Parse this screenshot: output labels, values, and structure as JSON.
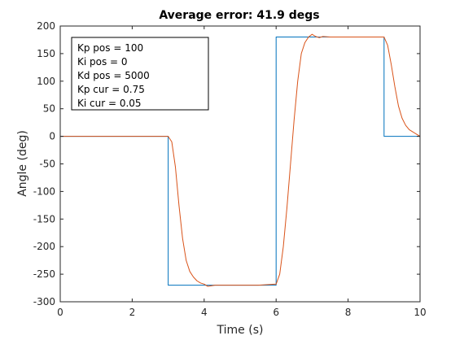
{
  "chart_data": {
    "type": "line",
    "title": "Average error:  41.9 degs",
    "xlabel": "Time (s)",
    "ylabel": "Angle (deg)",
    "xlim": [
      0,
      10
    ],
    "ylim": [
      -300,
      200
    ],
    "xticks": [
      0,
      2,
      4,
      6,
      8,
      10
    ],
    "yticks": [
      -300,
      -250,
      -200,
      -150,
      -100,
      -50,
      0,
      50,
      100,
      150,
      200
    ],
    "grid": false,
    "annotation_lines": [
      "Kp pos = 100",
      "Ki pos = 0",
      "Kd pos = 5000",
      "Kp cur = 0.75",
      "Ki cur = 0.05"
    ],
    "annotation_placement": "top-left",
    "series": [
      {
        "color": "#0072BD",
        "x": [
          0,
          3,
          3,
          6,
          6,
          9,
          9,
          10
        ],
        "y": [
          0,
          0,
          -270,
          -270,
          180,
          180,
          0,
          0
        ]
      },
      {
        "color": "#D95319",
        "x": [
          0,
          3.0,
          3.1,
          3.2,
          3.3,
          3.4,
          3.5,
          3.6,
          3.7,
          3.8,
          3.9,
          4.0,
          4.1,
          4.2,
          4.3,
          4.5,
          5.0,
          5.5,
          6.0,
          6.1,
          6.2,
          6.3,
          6.4,
          6.5,
          6.6,
          6.7,
          6.8,
          6.9,
          7.0,
          7.1,
          7.2,
          7.3,
          7.5,
          8.0,
          8.5,
          9.0,
          9.1,
          9.2,
          9.3,
          9.4,
          9.5,
          9.6,
          9.7,
          9.8,
          9.9,
          10.0
        ],
        "y": [
          0,
          0,
          -10,
          -55,
          -125,
          -185,
          -225,
          -245,
          -255,
          -262,
          -266,
          -268,
          -272,
          -271,
          -270,
          -270,
          -270,
          -270,
          -268,
          -250,
          -200,
          -130,
          -50,
          30,
          100,
          150,
          170,
          180,
          185,
          181,
          179,
          181,
          180,
          180,
          180,
          180,
          165,
          130,
          90,
          55,
          33,
          20,
          12,
          8,
          4,
          0
        ]
      }
    ]
  }
}
